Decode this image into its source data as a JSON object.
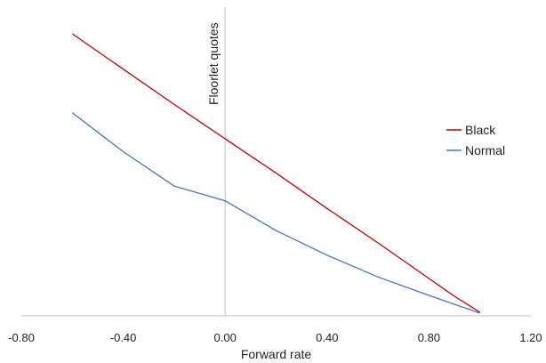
{
  "chart_data": {
    "type": "line",
    "title": "",
    "xlabel": "Forward rate",
    "ylabel": "Floorlet quotes",
    "xlim": [
      -0.8,
      1.2
    ],
    "ylim": [
      0,
      1.0
    ],
    "x_ticks": [
      "-0.80",
      "-0.40",
      "0.00",
      "0.40",
      "0.80",
      "1.20"
    ],
    "x_tick_values": [
      -0.8,
      -0.4,
      0.0,
      0.4,
      0.8,
      1.2
    ],
    "grid": false,
    "legend_position": "right",
    "series": [
      {
        "name": "Black",
        "color": "#c00000",
        "x": [
          -0.6,
          -0.4,
          -0.2,
          0.0,
          0.2,
          0.4,
          0.6,
          0.8,
          0.9,
          1.0
        ],
        "y": [
          0.913,
          0.798,
          0.683,
          0.571,
          0.459,
          0.344,
          0.232,
          0.116,
          0.058,
          0.006
        ]
      },
      {
        "name": "Normal",
        "color": "#4472c4",
        "x": [
          -0.6,
          -0.4,
          -0.2,
          0.0,
          0.2,
          0.4,
          0.6,
          0.8,
          1.0
        ],
        "y": [
          0.656,
          0.529,
          0.417,
          0.369,
          0.272,
          0.192,
          0.121,
          0.061,
          0.003
        ]
      }
    ]
  }
}
